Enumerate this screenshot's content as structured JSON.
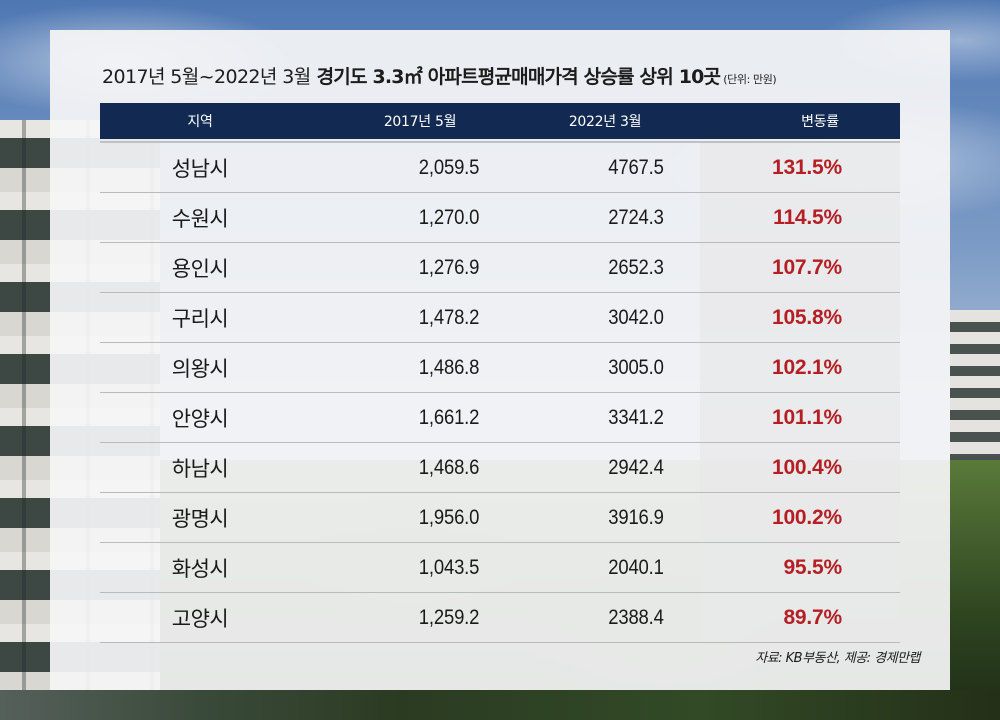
{
  "title": {
    "period": "2017년 5월~2022년 3월",
    "subject": "경기도 3.3㎡ 아파트평균매매가격 상승률 상위 10곳",
    "unit": "(단위: 만원)"
  },
  "table": {
    "headers": [
      "지역",
      "2017년 5월",
      "2022년 3월",
      "변동률"
    ],
    "rows": [
      {
        "region": "성남시",
        "may_2017": "2,059.5",
        "mar_2022": "4767.5",
        "change": "131.5%"
      },
      {
        "region": "수원시",
        "may_2017": "1,270.0",
        "mar_2022": "2724.3",
        "change": "114.5%"
      },
      {
        "region": "용인시",
        "may_2017": "1,276.9",
        "mar_2022": "2652.3",
        "change": "107.7%"
      },
      {
        "region": "구리시",
        "may_2017": "1,478.2",
        "mar_2022": "3042.0",
        "change": "105.8%"
      },
      {
        "region": "의왕시",
        "may_2017": "1,486.8",
        "mar_2022": "3005.0",
        "change": "102.1%"
      },
      {
        "region": "안양시",
        "may_2017": "1,661.2",
        "mar_2022": "3341.2",
        "change": "101.1%"
      },
      {
        "region": "하남시",
        "may_2017": "1,468.6",
        "mar_2022": "2942.4",
        "change": "100.4%"
      },
      {
        "region": "광명시",
        "may_2017": "1,956.0",
        "mar_2022": "3916.9",
        "change": "100.2%"
      },
      {
        "region": "화성시",
        "may_2017": "1,043.5",
        "mar_2022": "2040.1",
        "change": "95.5%"
      },
      {
        "region": "고양시",
        "may_2017": "1,259.2",
        "mar_2022": "2388.4",
        "change": "89.7%"
      }
    ]
  },
  "source": "자료: KB부동산, 제공: 경제만랩",
  "colors": {
    "header_bg": "#122a52",
    "header_text": "#ffffff",
    "rate_text": "#b51f24",
    "row_divider": "#b9babd",
    "panel_bg": "#f5f5f6"
  }
}
